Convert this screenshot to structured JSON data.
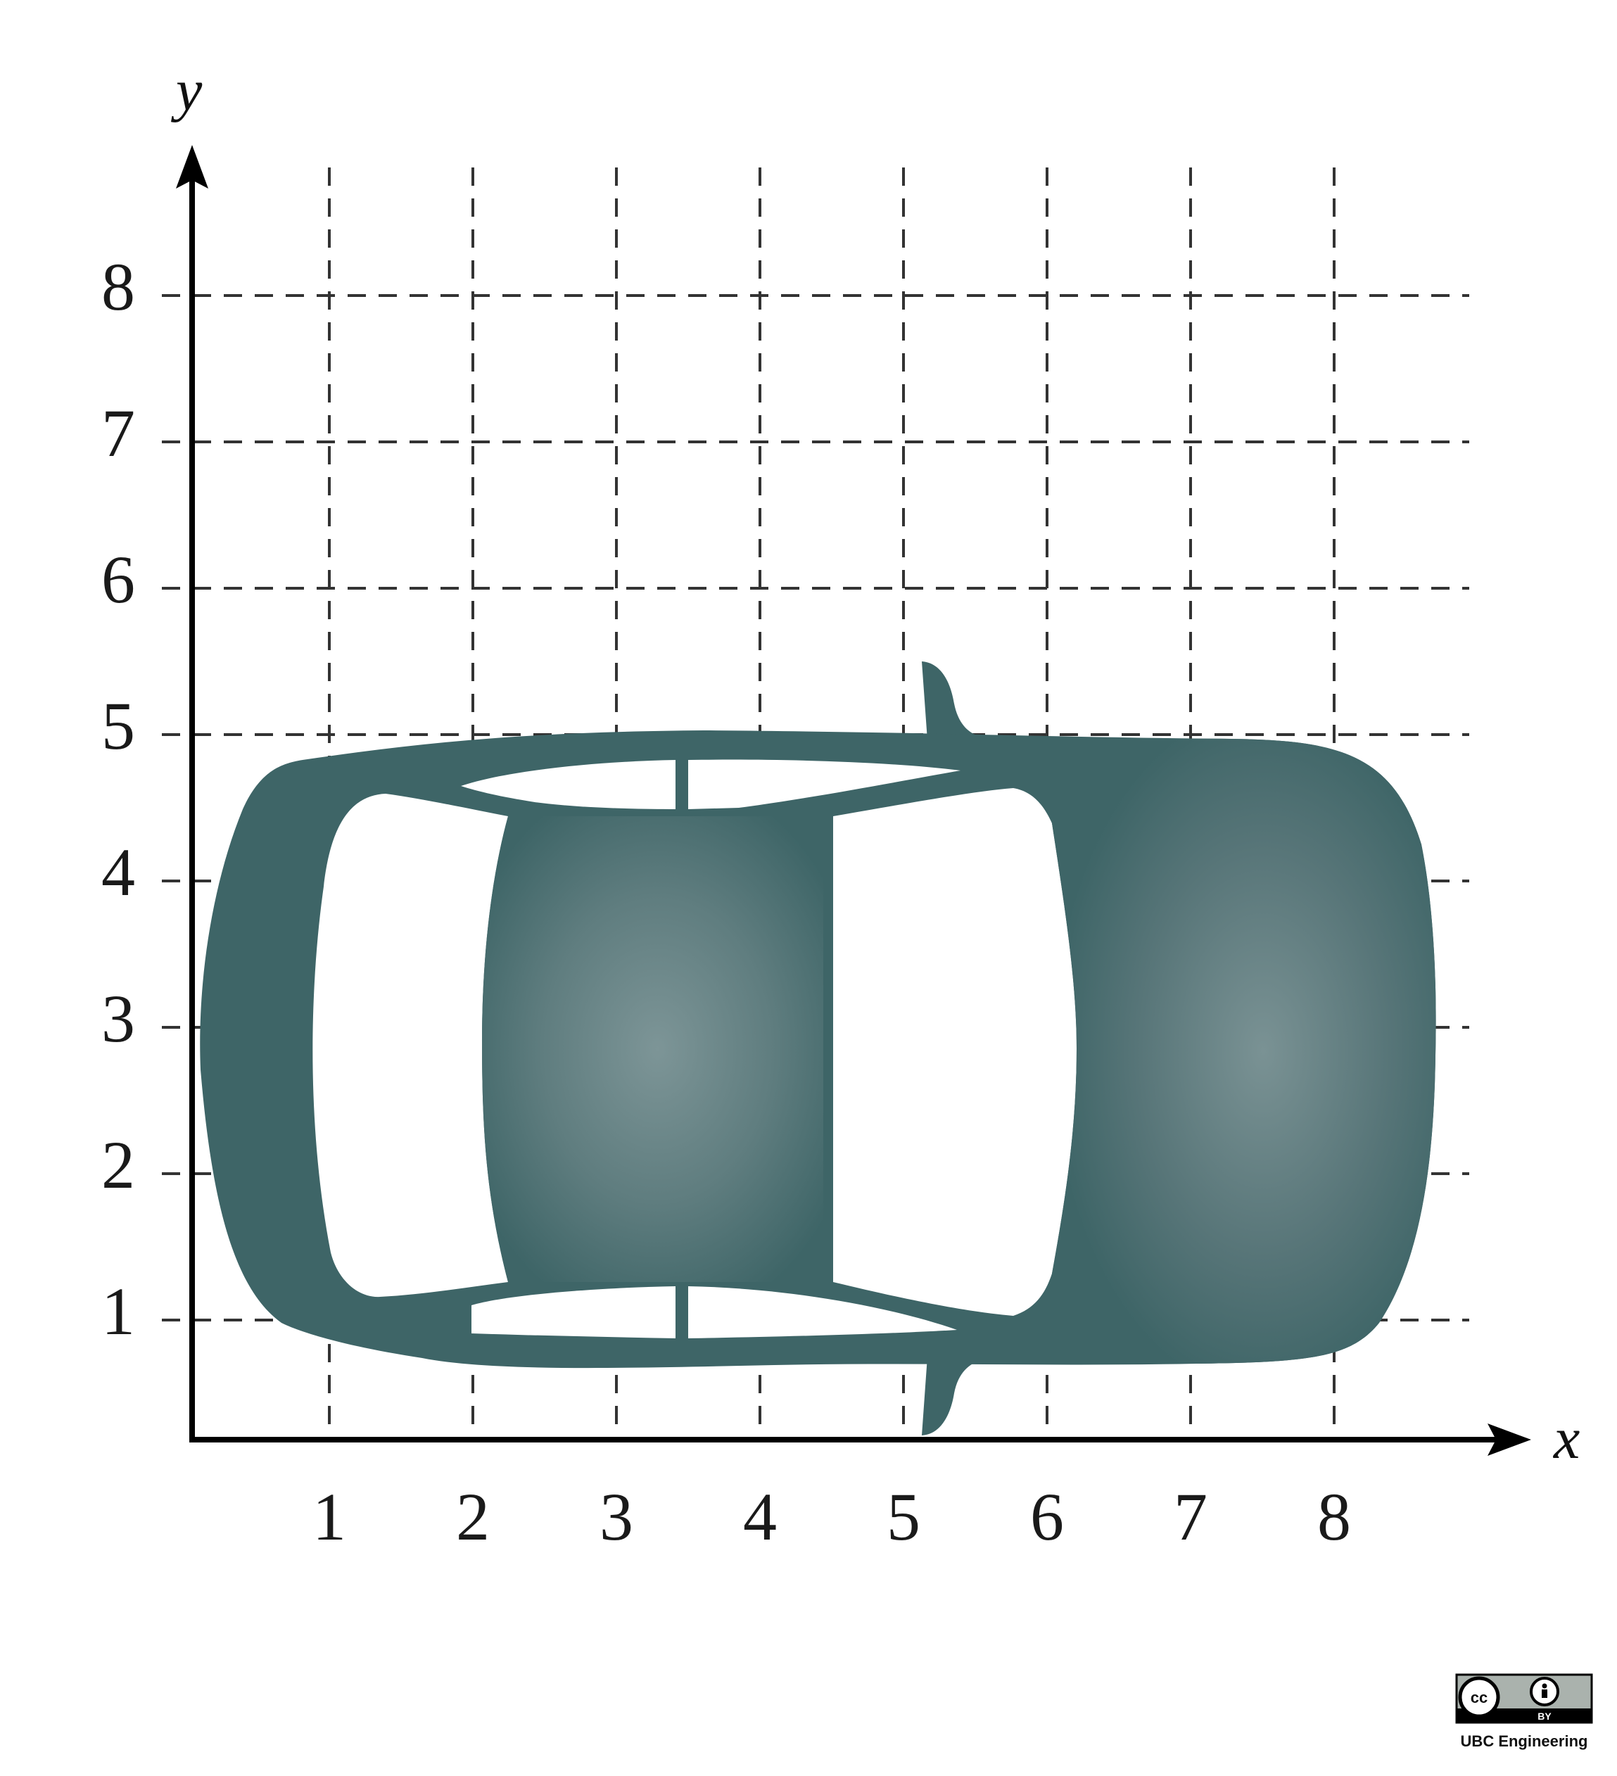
{
  "axes": {
    "x_label": "x",
    "y_label": "y",
    "x_ticks": [
      "1",
      "2",
      "3",
      "4",
      "5",
      "6",
      "7",
      "8"
    ],
    "y_ticks": [
      "1",
      "2",
      "3",
      "4",
      "5",
      "6",
      "7",
      "8"
    ]
  },
  "colors": {
    "car_body": "#3e6567",
    "car_highlight": "#7d9597",
    "grid": "#333333",
    "axis": "#000000"
  },
  "license": {
    "cc_glyph": "cc",
    "by_text": "BY",
    "credit": "UBC Engineering"
  }
}
